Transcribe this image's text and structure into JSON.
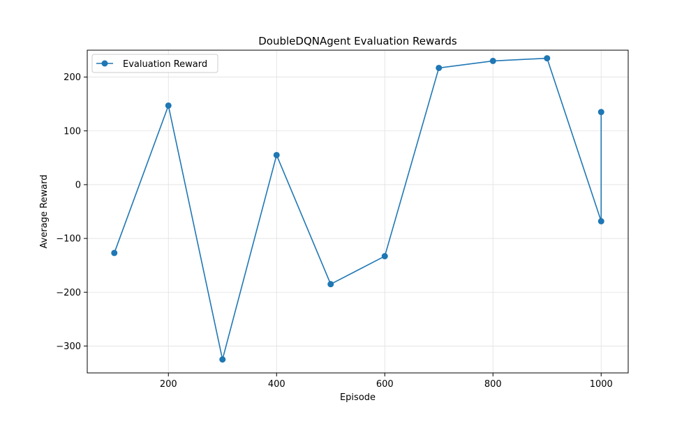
{
  "chart_data": {
    "type": "line",
    "title": "DoubleDQNAgent Evaluation Rewards",
    "xlabel": "Episode",
    "ylabel": "Average Reward",
    "xlim": [
      50,
      1050
    ],
    "ylim": [
      -350,
      250
    ],
    "xticks": [
      200,
      400,
      600,
      800,
      1000
    ],
    "yticks": [
      -300,
      -200,
      -100,
      0,
      100,
      200
    ],
    "grid": true,
    "legend_position": "top-left",
    "series": [
      {
        "name": "Evaluation Reward",
        "color": "#1f77b4",
        "marker": "circle",
        "x": [
          100,
          200,
          300,
          400,
          500,
          600,
          700,
          800,
          900,
          1000,
          1000
        ],
        "y": [
          -127,
          147,
          -325,
          55,
          -185,
          -133,
          217,
          230,
          235,
          -68,
          135
        ]
      }
    ]
  }
}
